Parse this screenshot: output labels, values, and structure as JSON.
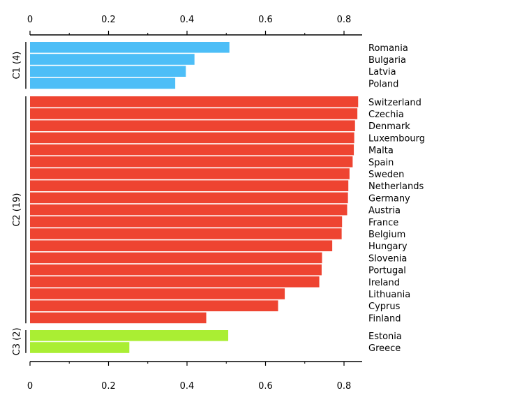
{
  "chart_data": {
    "type": "bar",
    "orientation": "horizontal",
    "xlim": [
      0,
      0.85
    ],
    "xticks": [
      "0",
      "0.2",
      "0.4",
      "0.6",
      "0.8"
    ],
    "xtick_values": [
      0,
      0.2,
      0.4,
      0.6,
      0.8
    ],
    "grid": false,
    "groups": [
      {
        "name": "C1 (4)",
        "color": "#4dbef7",
        "categories": [
          "Romania",
          "Bulgaria",
          "Latvia",
          "Poland"
        ],
        "values": [
          0.508,
          0.419,
          0.397,
          0.37
        ]
      },
      {
        "name": "C2 (19)",
        "color": "#ee4431",
        "categories": [
          "Switzerland",
          "Czechia",
          "Denmark",
          "Luxembourg",
          "Malta",
          "Spain",
          "Sweden",
          "Netherlands",
          "Germany",
          "Austria",
          "France",
          "Belgium",
          "Hungary",
          "Slovenia",
          "Portugal",
          "Ireland",
          "Lithuania",
          "Cyprus",
          "Finland"
        ],
        "values": [
          0.836,
          0.834,
          0.828,
          0.826,
          0.825,
          0.822,
          0.814,
          0.811,
          0.81,
          0.808,
          0.795,
          0.794,
          0.77,
          0.744,
          0.743,
          0.737,
          0.649,
          0.632,
          0.449
        ]
      },
      {
        "name": "C3 (2)",
        "color": "#aaee33",
        "categories": [
          "Estonia",
          "Greece"
        ],
        "values": [
          0.505,
          0.253
        ]
      }
    ]
  }
}
